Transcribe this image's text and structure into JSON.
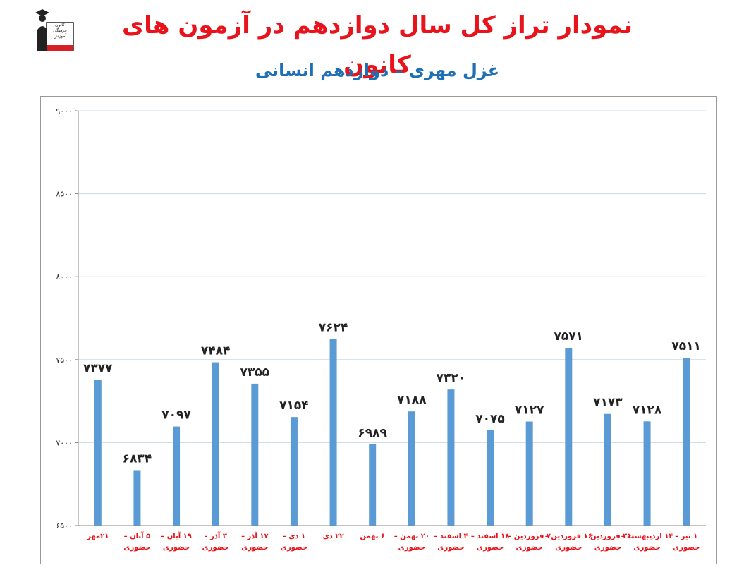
{
  "title": "نمودار تراز کل سال دوازدهم در آزمون های کانون",
  "subtitle": "غزل مهری – دوازدهم انسانی",
  "logo": {
    "icon": "graduate-logo-icon",
    "lines": [
      "کانون",
      "فرهنگی",
      "آموزش",
      "قلم چی"
    ]
  },
  "colors": {
    "title": "#e8131b",
    "subtitle": "#1f6fb5",
    "bar": "#5b9bd5",
    "category_label": "#e8131b",
    "value_label": "#222222",
    "grid": "#c8dcea"
  },
  "chart_data": {
    "type": "bar",
    "title": "",
    "xlabel": "",
    "ylabel": "",
    "ylim": [
      6500,
      9000
    ],
    "yticks": [
      6500,
      7000,
      7500,
      8000,
      8500,
      9000
    ],
    "ytick_labels": [
      "۶۵۰۰",
      "۷۰۰۰",
      "۷۵۰۰",
      "۸۰۰۰",
      "۸۵۰۰",
      "۹۰۰۰"
    ],
    "grid": true,
    "legend": "none",
    "categories": [
      "۲۱مهر",
      "۵ آبان – حضوری",
      "۱۹ آبان – حضوری",
      "۳ آذر – حضوری",
      "۱۷ آذر – حضوری",
      "۱ دی – حضوری",
      "۲۲ دی",
      "۶ بهمن",
      "۲۰ بهمن – حضوری",
      "۴ اسفند – حضوری",
      "۱۸ اسفند – حضوری",
      "۷ فروردین – حضوری",
      "۱۶ فروردین – حضوری",
      "۳۱ فروردین – حضوری",
      "۱۴ اردیبهشت – حضوری",
      "۱ تیر – حضوری"
    ],
    "values": [
      7377,
      6834,
      7097,
      7484,
      7355,
      7154,
      7624,
      6989,
      7188,
      7320,
      7075,
      7127,
      7571,
      7173,
      7128,
      7511
    ],
    "value_labels": [
      "۷۳۷۷",
      "۶۸۳۴",
      "۷۰۹۷",
      "۷۴۸۴",
      "۷۳۵۵",
      "۷۱۵۴",
      "۷۶۲۴",
      "۶۹۸۹",
      "۷۱۸۸",
      "۷۳۲۰",
      "۷۰۷۵",
      "۷۱۲۷",
      "۷۵۷۱",
      "۷۱۷۳",
      "۷۱۲۸",
      "۷۵۱۱"
    ]
  }
}
